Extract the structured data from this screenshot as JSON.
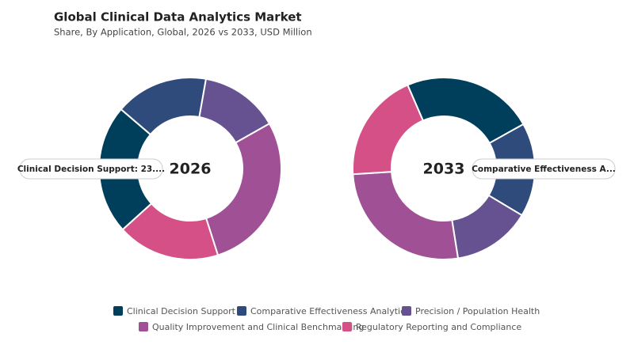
{
  "title": "Global Clinical Data Analytics Market",
  "subtitle": "Share, By Application, Global, 2026 vs 2033, USD Million",
  "chart_data": [
    {
      "type": "donut",
      "center_label": "2026",
      "categories": [
        "Clinical Decision Support",
        "Comparative Effectiveness Analytics",
        "Precision / Population Health",
        "Quality Improvement and Clinical Benchmarking",
        "Regulatory Reporting and Compliance"
      ],
      "values": [
        23.0,
        16.5,
        14.0,
        28.3,
        18.2
      ],
      "colors": [
        "#003f5c",
        "#2f4b7c",
        "#665191",
        "#a05195",
        "#d45087"
      ],
      "tooltip": "Clinical Decision Support: 23...."
    },
    {
      "type": "donut",
      "center_label": "2033",
      "categories": [
        "Clinical Decision Support",
        "Comparative Effectiveness Analytics",
        "Precision / Population Health",
        "Quality Improvement and Clinical Benchmarking",
        "Regulatory Reporting and Compliance"
      ],
      "values": [
        23.4,
        16.7,
        13.9,
        26.5,
        19.5
      ],
      "colors": [
        "#003f5c",
        "#2f4b7c",
        "#665191",
        "#a05195",
        "#d45087"
      ],
      "tooltip": "Comparative Effectiveness A..."
    }
  ]
}
